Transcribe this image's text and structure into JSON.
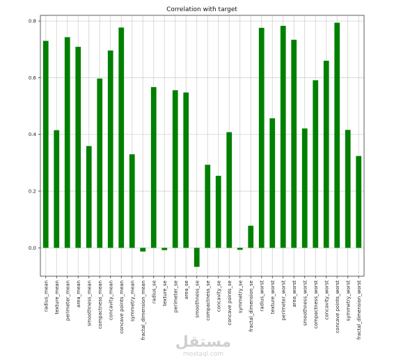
{
  "chart_data": {
    "type": "bar",
    "title": "Correlation with target",
    "xlabel": "",
    "ylabel": "",
    "ylim": [
      -0.1,
      0.82
    ],
    "yticks": [
      "0.0",
      "0.2",
      "0.4",
      "0.6",
      "0.8"
    ],
    "ytick_values": [
      0.0,
      0.2,
      0.4,
      0.6,
      0.8
    ],
    "grid": true,
    "bar_color": "#008000",
    "categories": [
      "radius_mean",
      "texture_mean",
      "perimeter_mean",
      "area_mean",
      "smoothness_mean",
      "compactness_mean",
      "concavity_mean",
      "concave points_mean",
      "symmetry_mean",
      "fractal_dimension_mean",
      "radius_se",
      "texture_se",
      "perimeter_se",
      "area_se",
      "smoothness_se",
      "compactness_se",
      "concavity_se",
      "concave points_se",
      "symmetry_se",
      "fractal_dimension_se",
      "radius_worst",
      "texture_worst",
      "perimeter_worst",
      "area_worst",
      "smoothness_worst",
      "compactness_worst",
      "concavity_worst",
      "concave points_worst",
      "symmetry_worst",
      "fractal_dimension_worst"
    ],
    "values": [
      0.73,
      0.415,
      0.743,
      0.709,
      0.359,
      0.597,
      0.696,
      0.777,
      0.33,
      -0.013,
      0.567,
      -0.008,
      0.556,
      0.548,
      -0.067,
      0.293,
      0.254,
      0.408,
      -0.007,
      0.078,
      0.776,
      0.457,
      0.783,
      0.734,
      0.421,
      0.591,
      0.66,
      0.794,
      0.416,
      0.324
    ]
  },
  "watermark": {
    "text": "mostaql.com",
    "logo_text": "مستقل"
  }
}
